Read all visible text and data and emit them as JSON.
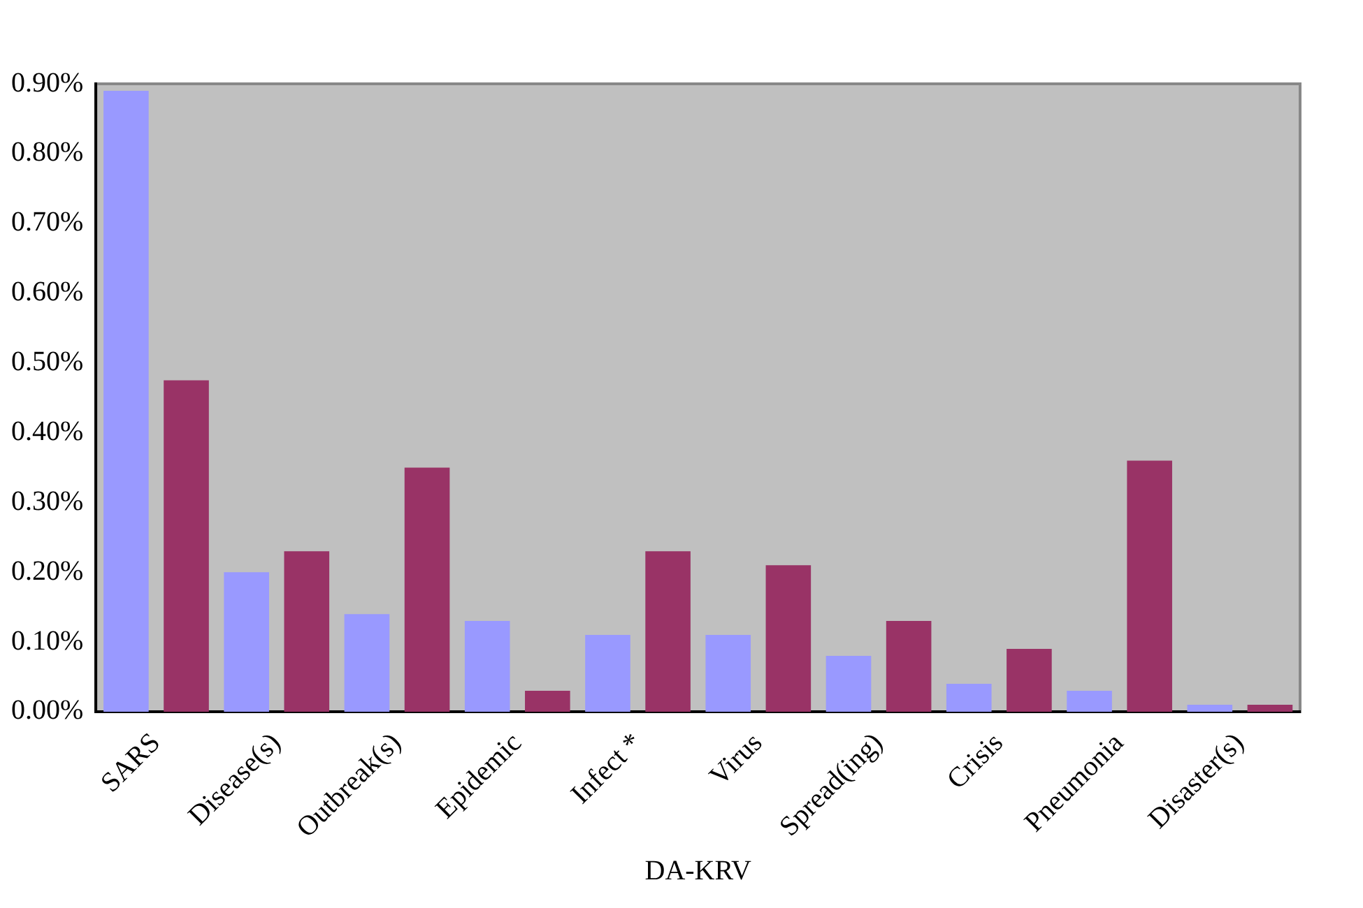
{
  "chart_data": {
    "type": "bar",
    "xlabel": "DA-KRV",
    "categories": [
      "SARS",
      "Disease(s)",
      "Outbreak(s)",
      "Epidemic",
      "Infect *",
      "Virus",
      "Spread(ing)",
      "Crisis",
      "Pneumonia",
      "Disaster(s)"
    ],
    "series": [
      {
        "color": "#9999ff",
        "values": [
          0.89,
          0.2,
          0.14,
          0.13,
          0.11,
          0.11,
          0.08,
          0.04,
          0.03,
          0.01
        ]
      },
      {
        "color": "#993366",
        "values": [
          0.475,
          0.23,
          0.35,
          0.03,
          0.23,
          0.21,
          0.13,
          0.09,
          0.36,
          0.01
        ]
      }
    ],
    "ylim": [
      0,
      0.9
    ],
    "yticks": [
      {
        "value": 0,
        "label": "0.00%"
      },
      {
        "value": 0.1,
        "label": "0.10%"
      },
      {
        "value": 0.2,
        "label": "0.20%"
      },
      {
        "value": 0.3,
        "label": "0.30%"
      },
      {
        "value": 0.4,
        "label": "0.40%"
      },
      {
        "value": 0.5,
        "label": "0.50%"
      },
      {
        "value": 0.6,
        "label": "0.60%"
      },
      {
        "value": 0.7,
        "label": "0.70%"
      },
      {
        "value": 0.8,
        "label": "0.80%"
      },
      {
        "value": 0.9,
        "label": "0.90%"
      }
    ],
    "grid": false,
    "legend": false
  }
}
